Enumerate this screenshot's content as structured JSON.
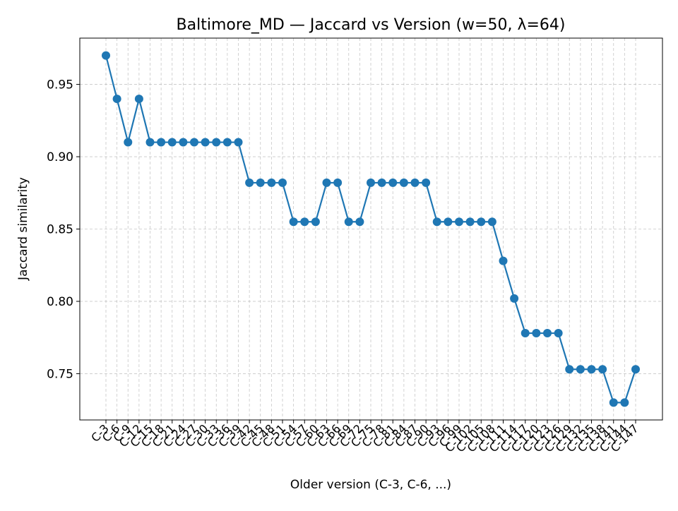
{
  "chart_data": {
    "type": "line",
    "title": "Baltimore_MD — Jaccard vs Version (w=50, λ=64)",
    "xlabel": "Older version (C-3, C-6, ...)",
    "ylabel": "Jaccard similarity",
    "ylim": [
      0.718,
      0.982
    ],
    "yticks": [
      "0.75",
      "0.80",
      "0.85",
      "0.90",
      "0.95"
    ],
    "grid": true,
    "grid_style": "dashed",
    "line_color": "#1f77b4",
    "categories": [
      "C-3",
      "C-6",
      "C-9",
      "C-12",
      "C-15",
      "C-18",
      "C-21",
      "C-24",
      "C-27",
      "C-30",
      "C-33",
      "C-36",
      "C-39",
      "C-42",
      "C-45",
      "C-48",
      "C-51",
      "C-54",
      "C-57",
      "C-60",
      "C-63",
      "C-66",
      "C-69",
      "C-72",
      "C-75",
      "C-78",
      "C-81",
      "C-84",
      "C-87",
      "C-90",
      "C-93",
      "C-96",
      "C-99",
      "C-102",
      "C-105",
      "C-108",
      "C-111",
      "C-114",
      "C-117",
      "C-120",
      "C-123",
      "C-126",
      "C-129",
      "C-132",
      "C-135",
      "C-138",
      "C-141",
      "C-144",
      "C-147"
    ],
    "values": [
      0.97,
      0.94,
      0.91,
      0.94,
      0.91,
      0.91,
      0.91,
      0.91,
      0.91,
      0.91,
      0.91,
      0.91,
      0.91,
      0.882,
      0.882,
      0.882,
      0.882,
      0.855,
      0.855,
      0.855,
      0.882,
      0.882,
      0.855,
      0.855,
      0.882,
      0.882,
      0.882,
      0.882,
      0.882,
      0.882,
      0.855,
      0.855,
      0.855,
      0.855,
      0.855,
      0.855,
      0.828,
      0.802,
      0.778,
      0.778,
      0.778,
      0.778,
      0.753,
      0.753,
      0.753,
      0.753,
      0.73,
      0.73,
      0.753
    ]
  }
}
